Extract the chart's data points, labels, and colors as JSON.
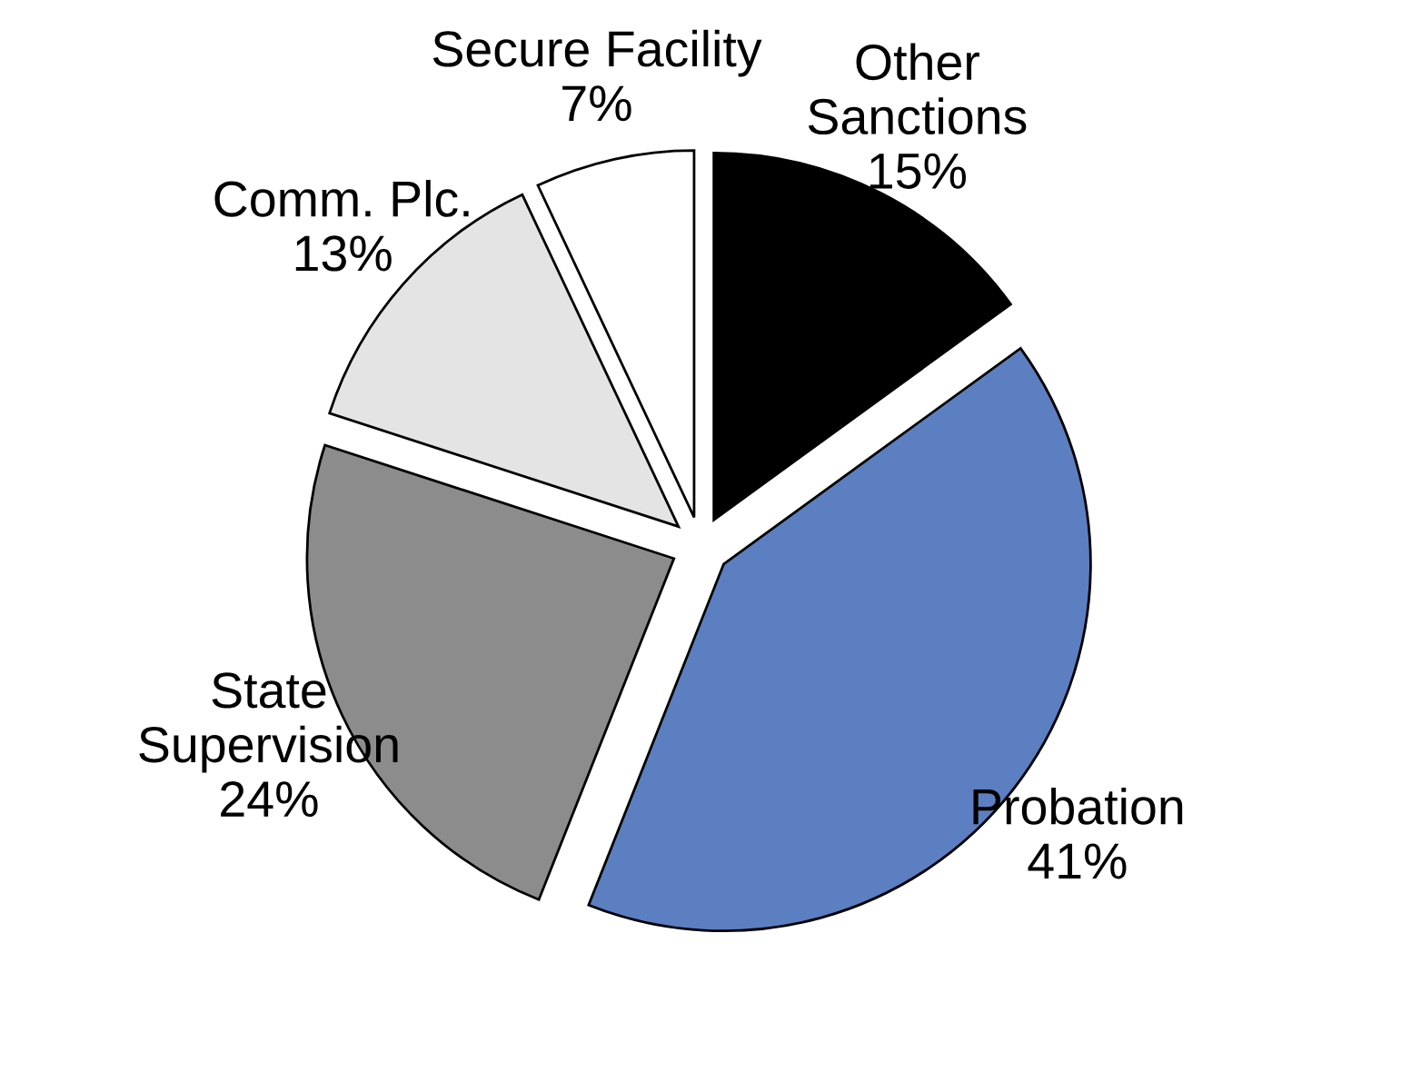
{
  "chart_data": {
    "type": "pie",
    "categories": [
      "Other\nSanctions",
      "Probation",
      "State\nSupervision",
      "Comm. Plc.",
      "Secure Facility"
    ],
    "values": [
      15,
      41,
      24,
      13,
      7
    ],
    "value_labels": [
      "15%",
      "41%",
      "24%",
      "13%",
      "7%"
    ],
    "colors": [
      "#000000",
      "#5b7fc0",
      "#8c8c8c",
      "#e4e4e4",
      "#ffffff"
    ]
  }
}
